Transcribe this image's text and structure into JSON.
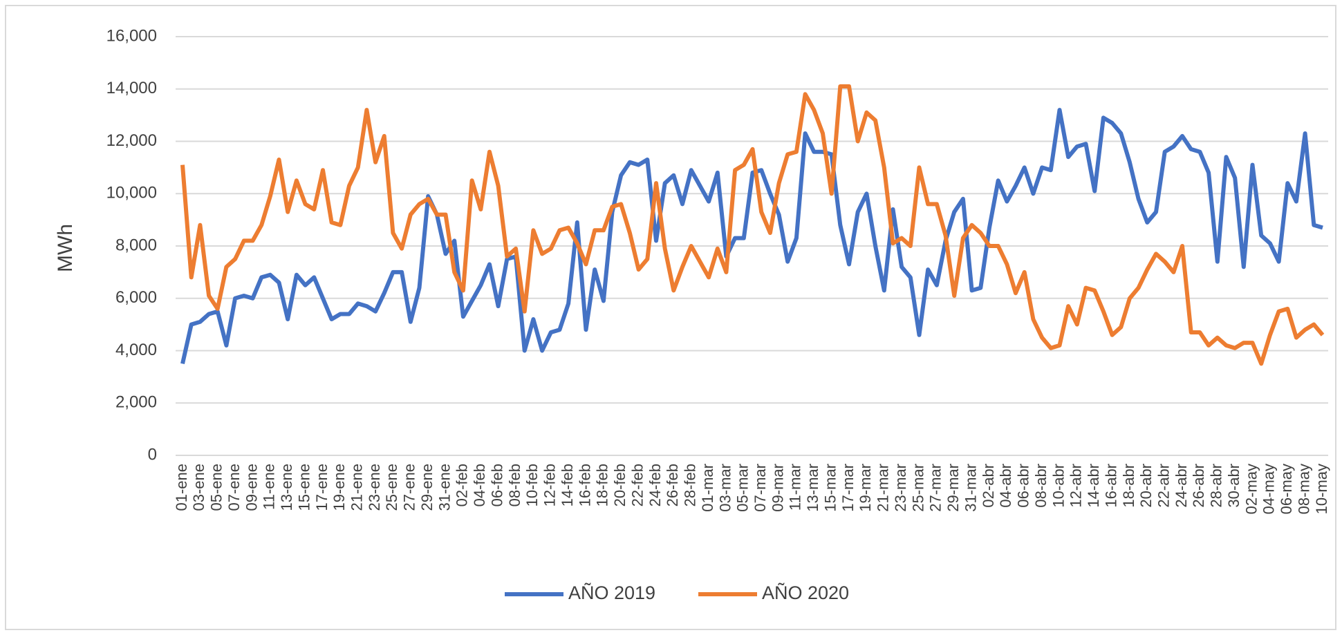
{
  "chart_data": {
    "type": "line",
    "y_label": "MWh",
    "categories": [
      "01-ene",
      null,
      "03-ene",
      null,
      "05-ene",
      null,
      "07-ene",
      null,
      "09-ene",
      null,
      "11-ene",
      null,
      "13-ene",
      null,
      "15-ene",
      null,
      "17-ene",
      null,
      "19-ene",
      null,
      "21-ene",
      null,
      "23-ene",
      null,
      "25-ene",
      null,
      "27-ene",
      null,
      "29-ene",
      null,
      "31-ene",
      null,
      "02-feb",
      null,
      "04-feb",
      null,
      "06-feb",
      null,
      "08-feb",
      null,
      "10-feb",
      null,
      "12-feb",
      null,
      "14-feb",
      null,
      "16-feb",
      null,
      "18-feb",
      null,
      "20-feb",
      null,
      "22-feb",
      null,
      "24-feb",
      null,
      "26-feb",
      null,
      "28-feb",
      null,
      "01-mar",
      null,
      "03-mar",
      null,
      "05-mar",
      null,
      "07-mar",
      null,
      "09-mar",
      null,
      "11-mar",
      null,
      "13-mar",
      null,
      "15-mar",
      null,
      "17-mar",
      null,
      "19-mar",
      null,
      "21-mar",
      null,
      "23-mar",
      null,
      "25-mar",
      null,
      "27-mar",
      null,
      "29-mar",
      null,
      "31-mar",
      null,
      "02-abr",
      null,
      "04-abr",
      null,
      "06-abr",
      null,
      "08-abr",
      null,
      "10-abr",
      null,
      "12-abr",
      null,
      "14-abr",
      null,
      "16-abr",
      null,
      "18-abr",
      null,
      "20-abr",
      null,
      "22-abr",
      null,
      "24-abr",
      null,
      "26-abr",
      null,
      "28-abr",
      null,
      "30-abr",
      null,
      "02-may",
      null,
      "04-may",
      null,
      "06-may",
      null,
      "08-may",
      null,
      "10-may"
    ],
    "series": [
      {
        "name": "AÑO 2019",
        "color": "#4472c4",
        "values": [
          3500,
          5000,
          5100,
          5400,
          5500,
          4200,
          6000,
          6100,
          6000,
          6800,
          6900,
          6600,
          5200,
          6900,
          6500,
          6800,
          6000,
          5200,
          5400,
          5400,
          5800,
          5700,
          5500,
          6200,
          7000,
          7000,
          5100,
          6400,
          9900,
          9200,
          7700,
          8200,
          5300,
          5900,
          6500,
          7300,
          5700,
          7500,
          7600,
          4000,
          5200,
          4000,
          4700,
          4800,
          5800,
          8900,
          4800,
          7100,
          5900,
          9300,
          10700,
          11200,
          11100,
          11300,
          8200,
          10400,
          10700,
          9600,
          10900,
          10300,
          9700,
          10800,
          7600,
          8300,
          8300,
          10800,
          10900,
          10000,
          9200,
          7400,
          8300,
          12300,
          11600,
          11600,
          11500,
          8800,
          7300,
          9300,
          10000,
          8000,
          6300,
          9400,
          7200,
          6800,
          4600,
          7100,
          6500,
          8200,
          9300,
          9800,
          6300,
          6400,
          8700,
          10500,
          9700,
          10300,
          11000,
          10000,
          11000,
          10900,
          13200,
          11400,
          11800,
          11900,
          10100,
          12900,
          12700,
          12300,
          11200,
          9800,
          8900,
          9300,
          11600,
          11800,
          12200,
          11700,
          11600,
          10800,
          7400,
          11400,
          10600,
          7200,
          11100,
          8400,
          8100,
          7400,
          10400,
          9700,
          12300,
          8800,
          8700
        ]
      },
      {
        "name": "AÑO 2020",
        "color": "#ed7d31",
        "values": [
          11100,
          6800,
          8800,
          6100,
          5600,
          7200,
          7500,
          8200,
          8200,
          8800,
          9900,
          11300,
          9300,
          10500,
          9600,
          9400,
          10900,
          8900,
          8800,
          10300,
          11000,
          13200,
          11200,
          12200,
          8500,
          7900,
          9200,
          9600,
          9800,
          9200,
          9200,
          7000,
          6300,
          10500,
          9400,
          11600,
          10300,
          7600,
          7900,
          5500,
          8600,
          7700,
          7900,
          8600,
          8700,
          8100,
          7300,
          8600,
          8600,
          9500,
          9600,
          8500,
          7100,
          7500,
          10400,
          7900,
          6300,
          7200,
          8000,
          7400,
          6800,
          7900,
          7000,
          10900,
          11100,
          11700,
          9300,
          8500,
          10400,
          11500,
          11600,
          13800,
          13200,
          12300,
          10000,
          14100,
          14100,
          12000,
          13100,
          12800,
          11000,
          8100,
          8300,
          8000,
          11000,
          9600,
          9600,
          8400,
          6100,
          8300,
          8800,
          8500,
          8000,
          8000,
          7300,
          6200,
          7000,
          5200,
          4500,
          4100,
          4200,
          5700,
          5000,
          6400,
          6300,
          5500,
          4600,
          4900,
          6000,
          6400,
          7100,
          7700,
          7400,
          7000,
          8000,
          4700,
          4700,
          4200,
          4500,
          4200,
          4100,
          4300,
          4300,
          3500,
          4600,
          5500,
          5600,
          4500,
          4800,
          5000,
          4600
        ]
      }
    ],
    "ylim": [
      0,
      16000
    ],
    "yticks": [
      0,
      {
        "value": 2000,
        "label": "2,000"
      },
      {
        "value": 4000,
        "label": "4,000"
      },
      {
        "value": 6000,
        "label": "6,000"
      },
      {
        "value": 8000,
        "label": "8,000"
      },
      {
        "value": 10000,
        "label": "10,000"
      },
      {
        "value": 12000,
        "label": "12,000"
      },
      {
        "value": 14000,
        "label": "14,000"
      },
      {
        "value": 16000,
        "label": "16,000"
      }
    ],
    "grid": true,
    "legend": "bottom"
  }
}
